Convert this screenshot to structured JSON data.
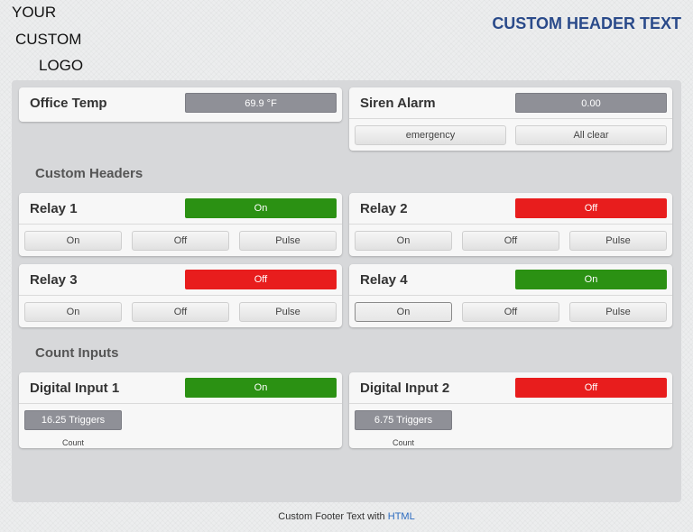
{
  "logo": {
    "line1": "YOUR",
    "line2": "CUSTOM",
    "line3": "LOGO"
  },
  "header": {
    "text": "CUSTOM HEADER TEXT"
  },
  "office_temp": {
    "title": "Office Temp",
    "value": "69.9 °F"
  },
  "siren_alarm": {
    "title": "Siren Alarm",
    "value": "0.00",
    "buttons": [
      "emergency",
      "All clear"
    ]
  },
  "sections": {
    "custom_headers": "Custom Headers",
    "count_inputs": "Count Inputs"
  },
  "relays": [
    {
      "title": "Relay 1",
      "state": "On",
      "buttons": [
        "On",
        "Off",
        "Pulse"
      ]
    },
    {
      "title": "Relay 2",
      "state": "Off",
      "buttons": [
        "On",
        "Off",
        "Pulse"
      ]
    },
    {
      "title": "Relay 3",
      "state": "Off",
      "buttons": [
        "On",
        "Off",
        "Pulse"
      ]
    },
    {
      "title": "Relay 4",
      "state": "On",
      "buttons": [
        "On",
        "Off",
        "Pulse"
      ]
    }
  ],
  "digital_inputs": [
    {
      "title": "Digital Input 1",
      "state": "On",
      "triggers": "16.25 Triggers",
      "label": "Count"
    },
    {
      "title": "Digital Input 2",
      "state": "Off",
      "triggers": "6.75 Triggers",
      "label": "Count"
    }
  ],
  "footer": {
    "text": "Custom Footer Text with",
    "link": "HTML"
  },
  "colors": {
    "on": "#2b9113",
    "off": "#e81d1d",
    "header": "#2a4a8a",
    "link": "#2a6abf"
  }
}
